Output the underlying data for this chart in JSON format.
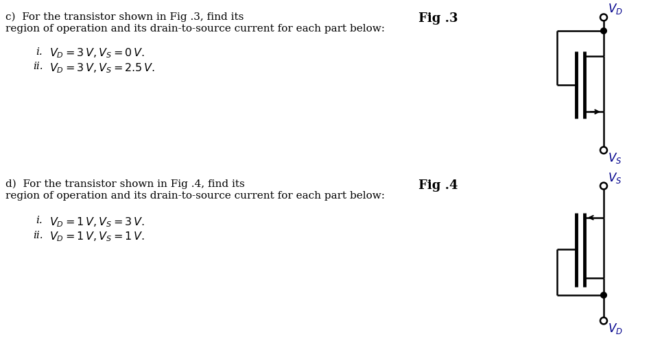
{
  "bg_color": "#ffffff",
  "text_color": "#000000",
  "label_color": "#00008B",
  "fig_width": 9.65,
  "fig_height": 4.98,
  "part_c_title": "c)  For the transistor shown in Fig .3, find its",
  "part_c_sub": "region of operation and its drain-to-source current for each part below:",
  "part_d_title": "d)  For the transistor shown in Fig .4, find its",
  "part_d_sub": "region of operation and its drain-to-source current for each part below:",
  "fig3_label": "Fig .3",
  "fig4_label": "Fig .4"
}
